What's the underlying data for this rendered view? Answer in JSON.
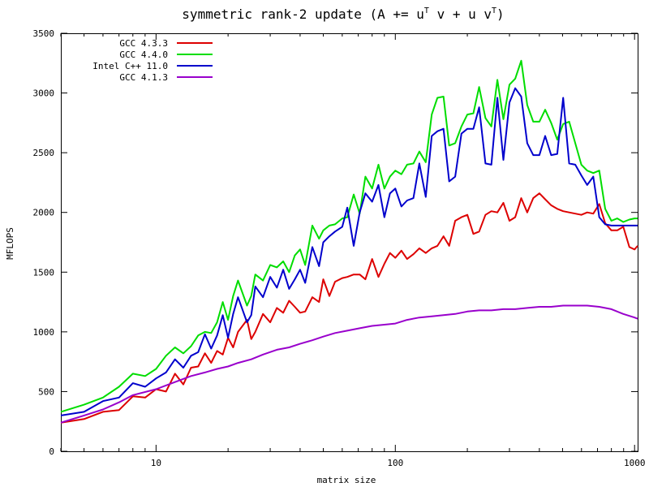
{
  "chart_data": {
    "type": "line",
    "title": "symmetric rank-2 update (A += u",
    "title_sup1": "T",
    "title_mid": " v + u v",
    "title_sup2": "T",
    "title_end": ")",
    "xlabel": "matrix size",
    "ylabel": "MFLOPS",
    "x_scale": "log",
    "xlim": [
      4,
      1030
    ],
    "ylim": [
      0,
      3500
    ],
    "x_ticks": [
      10,
      100,
      1000
    ],
    "x_tick_labels": [
      "10",
      "100",
      "1000"
    ],
    "y_ticks": [
      0,
      500,
      1000,
      1500,
      2000,
      2500,
      3000,
      3500
    ],
    "y_tick_labels": [
      "0",
      "500",
      "1000",
      "1500",
      "2000",
      "2500",
      "3000",
      "3500"
    ],
    "grid": false,
    "legend_position": "top-left",
    "series": [
      {
        "name": "GCC 4.3.3",
        "color": "#dd0000",
        "x": [
          4,
          5,
          6,
          7,
          8,
          9,
          10,
          11,
          12,
          13,
          14,
          15,
          16,
          17,
          18,
          19,
          20,
          21,
          22,
          24,
          25,
          26,
          28,
          30,
          32,
          34,
          36,
          38,
          40,
          42,
          45,
          48,
          50,
          53,
          56,
          60,
          63,
          67,
          71,
          75,
          80,
          85,
          90,
          95,
          100,
          106,
          112,
          119,
          126,
          134,
          142,
          150,
          159,
          168,
          178,
          189,
          200,
          212,
          224,
          238,
          252,
          267,
          283,
          300,
          317,
          336,
          356,
          377,
          400,
          423,
          448,
          475,
          503,
          533,
          565,
          599,
          634,
          672,
          712,
          754,
          800,
          847,
          897,
          951,
          1000,
          1030
        ],
        "y": [
          240,
          270,
          330,
          345,
          460,
          450,
          520,
          500,
          650,
          560,
          700,
          710,
          820,
          740,
          840,
          810,
          950,
          870,
          1000,
          1100,
          940,
          1000,
          1150,
          1080,
          1200,
          1160,
          1260,
          1210,
          1160,
          1170,
          1290,
          1250,
          1440,
          1300,
          1420,
          1450,
          1460,
          1480,
          1480,
          1440,
          1610,
          1460,
          1570,
          1660,
          1620,
          1680,
          1610,
          1650,
          1700,
          1660,
          1700,
          1720,
          1800,
          1720,
          1930,
          1960,
          1980,
          1820,
          1840,
          1980,
          2010,
          2000,
          2080,
          1930,
          1960,
          2120,
          2000,
          2120,
          2160,
          2110,
          2060,
          2030,
          2010,
          2000,
          1990,
          1980,
          2000,
          1990,
          2070,
          1910,
          1850,
          1850,
          1880,
          1710,
          1690,
          1720
        ]
      },
      {
        "name": "GCC 4.4.0",
        "color": "#00dd00",
        "x": [
          4,
          5,
          6,
          7,
          8,
          9,
          10,
          11,
          12,
          13,
          14,
          15,
          16,
          17,
          18,
          19,
          20,
          21,
          22,
          24,
          25,
          26,
          28,
          30,
          32,
          34,
          36,
          38,
          40,
          42,
          45,
          48,
          50,
          53,
          56,
          60,
          63,
          67,
          71,
          75,
          80,
          85,
          90,
          95,
          100,
          106,
          112,
          119,
          126,
          134,
          142,
          150,
          159,
          168,
          178,
          189,
          200,
          212,
          224,
          238,
          252,
          267,
          283,
          300,
          317,
          336,
          356,
          377,
          400,
          423,
          448,
          475,
          503,
          533,
          565,
          599,
          634,
          672,
          712,
          754,
          800,
          847,
          897,
          951,
          1000,
          1030
        ],
        "y": [
          330,
          390,
          450,
          540,
          650,
          630,
          690,
          800,
          870,
          820,
          880,
          970,
          1000,
          990,
          1080,
          1250,
          1100,
          1300,
          1430,
          1220,
          1300,
          1480,
          1430,
          1560,
          1540,
          1590,
          1500,
          1640,
          1690,
          1560,
          1890,
          1780,
          1850,
          1890,
          1900,
          1950,
          1960,
          2150,
          1990,
          2300,
          2200,
          2400,
          2200,
          2300,
          2350,
          2320,
          2400,
          2410,
          2510,
          2420,
          2820,
          2960,
          2970,
          2560,
          2580,
          2720,
          2820,
          2830,
          3050,
          2790,
          2720,
          3110,
          2780,
          3070,
          3120,
          3270,
          2900,
          2760,
          2760,
          2860,
          2750,
          2610,
          2740,
          2760,
          2580,
          2400,
          2350,
          2330,
          2350,
          2030,
          1930,
          1950,
          1920,
          1940,
          1950,
          1950
        ]
      },
      {
        "name": "Intel C++ 11.0",
        "color": "#0000cc",
        "x": [
          4,
          5,
          6,
          7,
          8,
          9,
          10,
          11,
          12,
          13,
          14,
          15,
          16,
          17,
          18,
          19,
          20,
          21,
          22,
          24,
          25,
          26,
          28,
          30,
          32,
          34,
          36,
          38,
          40,
          42,
          45,
          48,
          50,
          53,
          56,
          60,
          63,
          67,
          71,
          75,
          80,
          85,
          90,
          95,
          100,
          106,
          112,
          119,
          126,
          134,
          142,
          150,
          159,
          168,
          178,
          189,
          200,
          212,
          224,
          238,
          252,
          267,
          283,
          300,
          317,
          336,
          356,
          377,
          400,
          423,
          448,
          475,
          503,
          533,
          565,
          599,
          634,
          672,
          712,
          754,
          800,
          847,
          897,
          951,
          1000,
          1030
        ],
        "y": [
          300,
          330,
          420,
          450,
          570,
          540,
          610,
          660,
          770,
          700,
          800,
          830,
          980,
          860,
          970,
          1140,
          950,
          1150,
          1290,
          1080,
          1140,
          1380,
          1290,
          1460,
          1370,
          1520,
          1360,
          1440,
          1520,
          1410,
          1710,
          1550,
          1750,
          1800,
          1840,
          1880,
          2040,
          1720,
          2000,
          2160,
          2090,
          2230,
          1960,
          2160,
          2200,
          2050,
          2100,
          2120,
          2410,
          2130,
          2640,
          2680,
          2700,
          2260,
          2300,
          2660,
          2700,
          2700,
          2880,
          2410,
          2400,
          2960,
          2440,
          2920,
          3040,
          2970,
          2580,
          2480,
          2480,
          2640,
          2480,
          2490,
          2960,
          2410,
          2400,
          2310,
          2230,
          2300,
          1960,
          1900,
          1890,
          1890,
          1890,
          1890,
          1890,
          1890
        ]
      },
      {
        "name": "GCC 4.1.3",
        "color": "#9900cc",
        "x": [
          4,
          5,
          6,
          7,
          8,
          10,
          12,
          14,
          16,
          18,
          20,
          22,
          25,
          28,
          32,
          36,
          40,
          45,
          50,
          56,
          63,
          71,
          80,
          90,
          100,
          112,
          126,
          142,
          159,
          178,
          200,
          224,
          252,
          283,
          317,
          356,
          400,
          448,
          503,
          565,
          634,
          712,
          800,
          897,
          1000,
          1030
        ],
        "y": [
          240,
          300,
          350,
          410,
          470,
          520,
          580,
          630,
          660,
          690,
          710,
          740,
          770,
          810,
          850,
          870,
          900,
          930,
          960,
          990,
          1010,
          1030,
          1050,
          1060,
          1070,
          1100,
          1120,
          1130,
          1140,
          1150,
          1170,
          1180,
          1180,
          1190,
          1190,
          1200,
          1210,
          1210,
          1220,
          1220,
          1220,
          1210,
          1190,
          1150,
          1120,
          1110
        ]
      }
    ]
  }
}
